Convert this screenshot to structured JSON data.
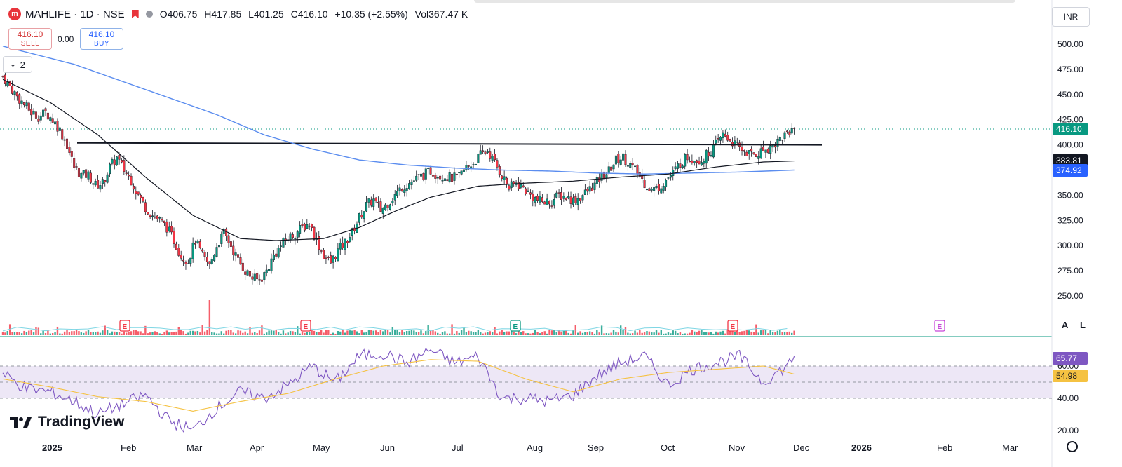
{
  "header": {
    "logo_letter": "m",
    "title": "MAHLIFE · 1D · NSE",
    "open": "O406.75",
    "high": "H417.85",
    "low": "L401.25",
    "close": "C416.10",
    "change": "+10.35 (+2.55%)",
    "volume": "Vol367.47 K"
  },
  "trade": {
    "sell_price": "416.10",
    "sell_label": "SELL",
    "spread": "0.00",
    "buy_price": "416.10",
    "buy_label": "BUY"
  },
  "indicator_count": "2",
  "currency": "INR",
  "watermark": "TradingView",
  "scale_buttons": {
    "auto": "A",
    "log": "L"
  },
  "colors": {
    "up": "#089981",
    "down": "#f23645",
    "sma50": "#131722",
    "sma200": "#5b8def",
    "rsi": "#7e57c2",
    "rsi_ma": "#f5c242",
    "band": "#ede7f6"
  },
  "chart_data": [
    {
      "type": "candlestick",
      "title": "MAHLIFE · 1D · NSE",
      "ylim": [
        225,
        512
      ],
      "y_ticks": [
        250,
        275,
        300,
        325,
        350,
        375,
        400,
        425,
        450,
        475,
        500
      ],
      "price_labels": [
        {
          "value": "416.10",
          "color": "#089981"
        },
        {
          "value": "383.81",
          "color": "#131722"
        },
        {
          "value": "374.92",
          "color": "#2962ff"
        }
      ],
      "horizontal_line": 400,
      "x_labels": [
        "2025",
        "Feb",
        "Mar",
        "Apr",
        "May",
        "Jun",
        "Jul",
        "Aug",
        "Sep",
        "Oct",
        "Nov",
        "Dec",
        "2026",
        "Feb",
        "Mar"
      ],
      "earnings_markers": [
        "Jan",
        "Apr",
        "Jul",
        "Oct",
        "Jan"
      ],
      "close_path": [
        [
          0,
          468
        ],
        [
          3,
          458
        ],
        [
          6,
          448
        ],
        [
          9,
          440
        ],
        [
          12,
          432
        ],
        [
          15,
          428
        ],
        [
          18,
          432
        ],
        [
          21,
          425
        ],
        [
          24,
          415
        ],
        [
          27,
          400
        ],
        [
          30,
          378
        ],
        [
          33,
          370
        ],
        [
          36,
          370
        ],
        [
          39,
          360
        ],
        [
          42,
          362
        ],
        [
          45,
          378
        ],
        [
          48,
          387
        ],
        [
          51,
          375
        ],
        [
          54,
          365
        ],
        [
          57,
          350
        ],
        [
          60,
          338
        ],
        [
          63,
          330
        ],
        [
          66,
          325
        ],
        [
          69,
          318
        ],
        [
          72,
          305
        ],
        [
          75,
          290
        ],
        [
          78,
          285
        ],
        [
          81,
          305
        ],
        [
          84,
          290
        ],
        [
          87,
          280
        ],
        [
          90,
          300
        ],
        [
          93,
          312
        ],
        [
          96,
          300
        ],
        [
          99,
          285
        ],
        [
          102,
          275
        ],
        [
          105,
          268
        ],
        [
          108,
          265
        ],
        [
          111,
          275
        ],
        [
          114,
          290
        ],
        [
          117,
          300
        ],
        [
          120,
          308
        ],
        [
          123,
          312
        ],
        [
          126,
          318
        ],
        [
          129,
          322
        ],
        [
          132,
          305
        ],
        [
          135,
          290
        ],
        [
          138,
          283
        ],
        [
          141,
          295
        ],
        [
          144,
          303
        ],
        [
          147,
          313
        ],
        [
          150,
          328
        ],
        [
          153,
          340
        ],
        [
          156,
          345
        ],
        [
          159,
          335
        ],
        [
          162,
          342
        ],
        [
          165,
          350
        ],
        [
          168,
          358
        ],
        [
          171,
          362
        ],
        [
          174,
          366
        ],
        [
          177,
          370
        ],
        [
          180,
          374
        ],
        [
          183,
          370
        ],
        [
          186,
          369
        ],
        [
          189,
          367
        ],
        [
          192,
          368
        ],
        [
          195,
          378
        ],
        [
          198,
          382
        ],
        [
          201,
          390
        ],
        [
          204,
          394
        ],
        [
          207,
          382
        ],
        [
          210,
          370
        ],
        [
          213,
          357
        ],
        [
          216,
          362
        ],
        [
          219,
          357
        ],
        [
          222,
          350
        ],
        [
          225,
          345
        ],
        [
          228,
          343
        ],
        [
          231,
          344
        ],
        [
          234,
          350
        ],
        [
          237,
          348
        ],
        [
          240,
          345
        ],
        [
          243,
          348
        ],
        [
          246,
          354
        ],
        [
          249,
          360
        ],
        [
          252,
          368
        ],
        [
          255,
          374
        ],
        [
          258,
          385
        ],
        [
          261,
          388
        ],
        [
          264,
          380
        ],
        [
          267,
          372
        ],
        [
          270,
          362
        ],
        [
          273,
          355
        ],
        [
          276,
          358
        ],
        [
          279,
          365
        ],
        [
          282,
          372
        ],
        [
          285,
          382
        ],
        [
          288,
          388
        ],
        [
          291,
          386
        ],
        [
          294,
          385
        ],
        [
          297,
          392
        ],
        [
          300,
          400
        ],
        [
          303,
          410
        ],
        [
          306,
          405
        ],
        [
          309,
          398
        ],
        [
          312,
          394
        ],
        [
          315,
          390
        ],
        [
          318,
          392
        ],
        [
          321,
          396
        ],
        [
          324,
          399
        ],
        [
          327,
          406
        ],
        [
          330,
          412
        ],
        [
          333,
          416
        ]
      ],
      "sma50_path": [
        [
          0,
          465
        ],
        [
          20,
          442
        ],
        [
          40,
          410
        ],
        [
          60,
          368
        ],
        [
          80,
          330
        ],
        [
          100,
          307
        ],
        [
          115,
          305
        ],
        [
          135,
          307
        ],
        [
          150,
          318
        ],
        [
          165,
          334
        ],
        [
          180,
          348
        ],
        [
          200,
          359
        ],
        [
          220,
          362
        ],
        [
          240,
          364
        ],
        [
          260,
          368
        ],
        [
          280,
          371
        ],
        [
          300,
          378
        ],
        [
          320,
          383
        ],
        [
          333,
          384
        ]
      ],
      "sma200_path": [
        [
          0,
          498
        ],
        [
          30,
          480
        ],
        [
          60,
          455
        ],
        [
          90,
          430
        ],
        [
          110,
          410
        ],
        [
          130,
          396
        ],
        [
          150,
          385
        ],
        [
          170,
          380
        ],
        [
          190,
          377
        ],
        [
          210,
          375
        ],
        [
          230,
          374
        ],
        [
          250,
          372
        ],
        [
          270,
          371
        ],
        [
          290,
          372
        ],
        [
          310,
          373
        ],
        [
          333,
          375
        ]
      ]
    },
    {
      "type": "bar",
      "title": "Volume",
      "highlight_bar_index": 87
    },
    {
      "type": "line",
      "title": "RSI",
      "ylim": [
        10,
        85
      ],
      "y_ticks": [
        20.0,
        40.0,
        60.0
      ],
      "band": [
        40,
        60
      ],
      "mid": 50,
      "value_labels": [
        {
          "value": "65.77",
          "color": "#7e57c2"
        },
        {
          "value": "54.98",
          "color": "#f5c242"
        }
      ],
      "rsi_path": [
        [
          0,
          55
        ],
        [
          10,
          46
        ],
        [
          20,
          44
        ],
        [
          30,
          38
        ],
        [
          40,
          30
        ],
        [
          50,
          36
        ],
        [
          60,
          42
        ],
        [
          70,
          26
        ],
        [
          80,
          20
        ],
        [
          90,
          34
        ],
        [
          100,
          44
        ],
        [
          110,
          40
        ],
        [
          120,
          48
        ],
        [
          130,
          60
        ],
        [
          140,
          50
        ],
        [
          150,
          66
        ],
        [
          160,
          68
        ],
        [
          170,
          62
        ],
        [
          180,
          70
        ],
        [
          190,
          62
        ],
        [
          200,
          66
        ],
        [
          210,
          40
        ],
        [
          220,
          40
        ],
        [
          230,
          38
        ],
        [
          240,
          42
        ],
        [
          250,
          54
        ],
        [
          260,
          62
        ],
        [
          270,
          66
        ],
        [
          280,
          48
        ],
        [
          290,
          58
        ],
        [
          300,
          62
        ],
        [
          310,
          66
        ],
        [
          320,
          50
        ],
        [
          330,
          60
        ],
        [
          333,
          66
        ]
      ],
      "rsi_ma_path": [
        [
          0,
          52
        ],
        [
          20,
          47
        ],
        [
          40,
          41
        ],
        [
          60,
          38
        ],
        [
          80,
          32
        ],
        [
          100,
          38
        ],
        [
          120,
          43
        ],
        [
          140,
          52
        ],
        [
          160,
          60
        ],
        [
          180,
          64
        ],
        [
          200,
          63
        ],
        [
          220,
          52
        ],
        [
          240,
          44
        ],
        [
          260,
          52
        ],
        [
          280,
          56
        ],
        [
          300,
          58
        ],
        [
          320,
          60
        ],
        [
          333,
          55
        ]
      ]
    }
  ]
}
